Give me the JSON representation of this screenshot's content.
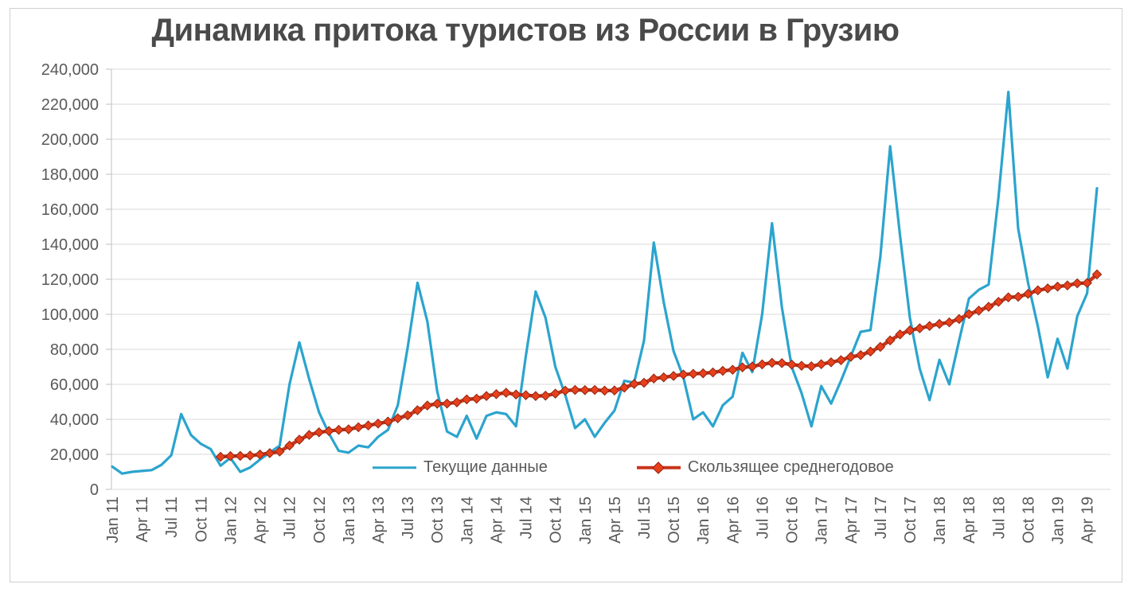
{
  "chart_data": {
    "type": "line",
    "title": "Динамика притока туристов из России в Грузию",
    "xlabel": "",
    "ylabel": "",
    "y_axis": {
      "min": 0,
      "max": 240000,
      "step": 20000,
      "tick_labels": [
        "0",
        "20,000",
        "40,000",
        "60,000",
        "80,000",
        "100,000",
        "120,000",
        "140,000",
        "160,000",
        "180,000",
        "200,000",
        "220,000",
        "240,000"
      ]
    },
    "x_axis": {
      "tick_every_n_months": 3,
      "tick_labels": [
        "Jan 11",
        "Apr 11",
        "Jul 11",
        "Oct 11",
        "Jan 12",
        "Apr 12",
        "Jul 12",
        "Oct 12",
        "Jan 13",
        "Apr 13",
        "Jul 13",
        "Oct 13",
        "Jan 14",
        "Apr 14",
        "Jul 14",
        "Oct 14",
        "Jan 15",
        "Apr 15",
        "Jul 15",
        "Oct 15",
        "Jan 16",
        "Apr 16",
        "Jul 16",
        "Oct 16",
        "Jan 17",
        "Apr 17",
        "Jul 17",
        "Oct 17",
        "Jan 18",
        "Apr 18",
        "Jul 18",
        "Oct 18",
        "Jan 19",
        "Apr 19"
      ]
    },
    "months": [
      "Jan 11",
      "Feb 11",
      "Mar 11",
      "Apr 11",
      "May 11",
      "Jun 11",
      "Jul 11",
      "Aug 11",
      "Sep 11",
      "Oct 11",
      "Nov 11",
      "Dec 11",
      "Jan 12",
      "Feb 12",
      "Mar 12",
      "Apr 12",
      "May 12",
      "Jun 12",
      "Jul 12",
      "Aug 12",
      "Sep 12",
      "Oct 12",
      "Nov 12",
      "Dec 12",
      "Jan 13",
      "Feb 13",
      "Mar 13",
      "Apr 13",
      "May 13",
      "Jun 13",
      "Jul 13",
      "Aug 13",
      "Sep 13",
      "Oct 13",
      "Nov 13",
      "Dec 13",
      "Jan 14",
      "Feb 14",
      "Mar 14",
      "Apr 14",
      "May 14",
      "Jun 14",
      "Jul 14",
      "Aug 14",
      "Sep 14",
      "Oct 14",
      "Nov 14",
      "Dec 14",
      "Jan 15",
      "Feb 15",
      "Mar 15",
      "Apr 15",
      "May 15",
      "Jun 15",
      "Jul 15",
      "Aug 15",
      "Sep 15",
      "Oct 15",
      "Nov 15",
      "Dec 15",
      "Jan 16",
      "Feb 16",
      "Mar 16",
      "Apr 16",
      "May 16",
      "Jun 16",
      "Jul 16",
      "Aug 16",
      "Sep 16",
      "Oct 16",
      "Nov 16",
      "Dec 16",
      "Jan 17",
      "Feb 17",
      "Mar 17",
      "Apr 17",
      "May 17",
      "Jun 17",
      "Jul 17",
      "Aug 17",
      "Sep 17",
      "Oct 17",
      "Nov 17",
      "Dec 17",
      "Jan 18",
      "Feb 18",
      "Mar 18",
      "Apr 18",
      "May 18",
      "Jun 18",
      "Jul 18",
      "Aug 18",
      "Sep 18",
      "Oct 18",
      "Nov 18",
      "Dec 18",
      "Jan 19",
      "Feb 19",
      "Mar 19",
      "Apr 19",
      "May 19"
    ],
    "series": [
      {
        "name": "Текущие данные",
        "color": "#2BA4CE",
        "line_width": 3.2,
        "values": [
          13000,
          9000,
          10000,
          10500,
          11000,
          14000,
          19500,
          43000,
          31000,
          26000,
          23000,
          13500,
          18000,
          10000,
          12500,
          17000,
          21000,
          25000,
          60000,
          84000,
          63000,
          44000,
          32000,
          22000,
          21000,
          25000,
          24000,
          30000,
          34000,
          48000,
          81000,
          118000,
          96000,
          56000,
          33000,
          30000,
          42000,
          29000,
          42000,
          44000,
          43000,
          36000,
          76000,
          113000,
          98000,
          70000,
          54000,
          35000,
          40000,
          30000,
          38000,
          45000,
          62000,
          61000,
          85000,
          141000,
          107000,
          79000,
          64000,
          40000,
          44000,
          36000,
          48000,
          53000,
          78000,
          67000,
          100000,
          152000,
          104000,
          70000,
          55000,
          36000,
          59000,
          49000,
          62000,
          76000,
          90000,
          91000,
          133000,
          196000,
          145000,
          98000,
          69000,
          51000,
          74000,
          60000,
          85000,
          109000,
          114000,
          117000,
          167000,
          227000,
          149000,
          118000,
          93000,
          64000,
          86000,
          69000,
          99000,
          112000,
          172000
        ]
      },
      {
        "name": "Скользящее среднегодовое",
        "color": "#C9351B",
        "marker": "diamond",
        "marker_color": "#E8401C",
        "marker_edge_color": "#8C2410",
        "line_width": 4.5,
        "values": [
          null,
          null,
          null,
          null,
          null,
          null,
          null,
          null,
          null,
          null,
          null,
          18600,
          19000,
          19100,
          19300,
          19900,
          20700,
          21600,
          25000,
          28400,
          31100,
          32600,
          33300,
          34000,
          34300,
          35500,
          36500,
          37600,
          38700,
          40600,
          42300,
          45200,
          47900,
          48900,
          49000,
          49700,
          51400,
          51800,
          53300,
          54400,
          55200,
          54200,
          53800,
          53300,
          53500,
          54700,
          56400,
          56800,
          56700,
          56800,
          56400,
          56500,
          58100,
          60200,
          60900,
          63300,
          64000,
          64800,
          65600,
          66000,
          66300,
          66800,
          67700,
          68300,
          69700,
          70200,
          71400,
          72300,
          72100,
          71300,
          70600,
          70300,
          71500,
          72600,
          73800,
          75700,
          76700,
          78700,
          81400,
          85100,
          88500,
          90800,
          92000,
          93300,
          94500,
          95400,
          97300,
          100100,
          102100,
          104300,
          107100,
          109700,
          110000,
          111700,
          113700,
          114800,
          115800,
          116500,
          117700,
          117900,
          122800
        ]
      }
    ],
    "legend": {
      "position": "bottom-inside",
      "entries": [
        "Текущие данные",
        "Скользящее среднегодовое"
      ]
    },
    "grid": {
      "horizontal": true,
      "vertical": false,
      "color": "#D9D9D9"
    },
    "axis_color": "#BFBFBF",
    "text_color": "#595959",
    "title_color": "#4A4A4A"
  }
}
